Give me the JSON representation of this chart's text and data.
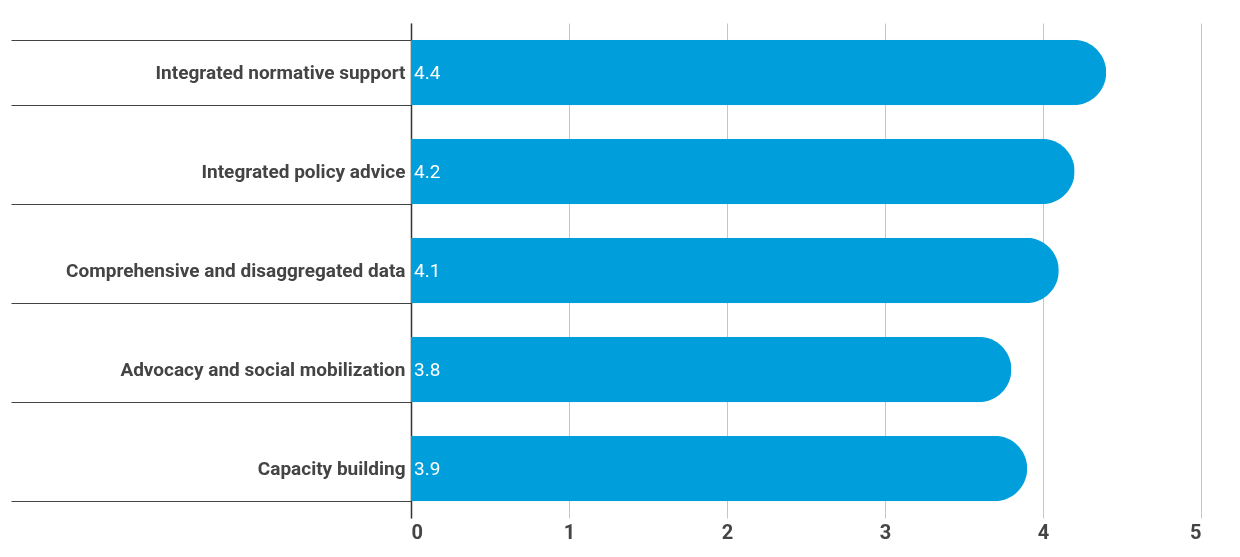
{
  "chart_data": {
    "type": "bar",
    "orientation": "horizontal",
    "categories": [
      "Integrated normative support",
      "Integrated policy advice",
      "Comprehensive and disaggregated data",
      "Advocacy and social mobilization",
      "Capacity building"
    ],
    "values": [
      4.4,
      4.2,
      4.1,
      3.8,
      3.9
    ],
    "color": "#009edb",
    "xlim": [
      0,
      5
    ],
    "xticks": [
      0,
      1,
      2,
      3,
      4,
      5
    ],
    "grid": "x",
    "data_labels": true
  }
}
